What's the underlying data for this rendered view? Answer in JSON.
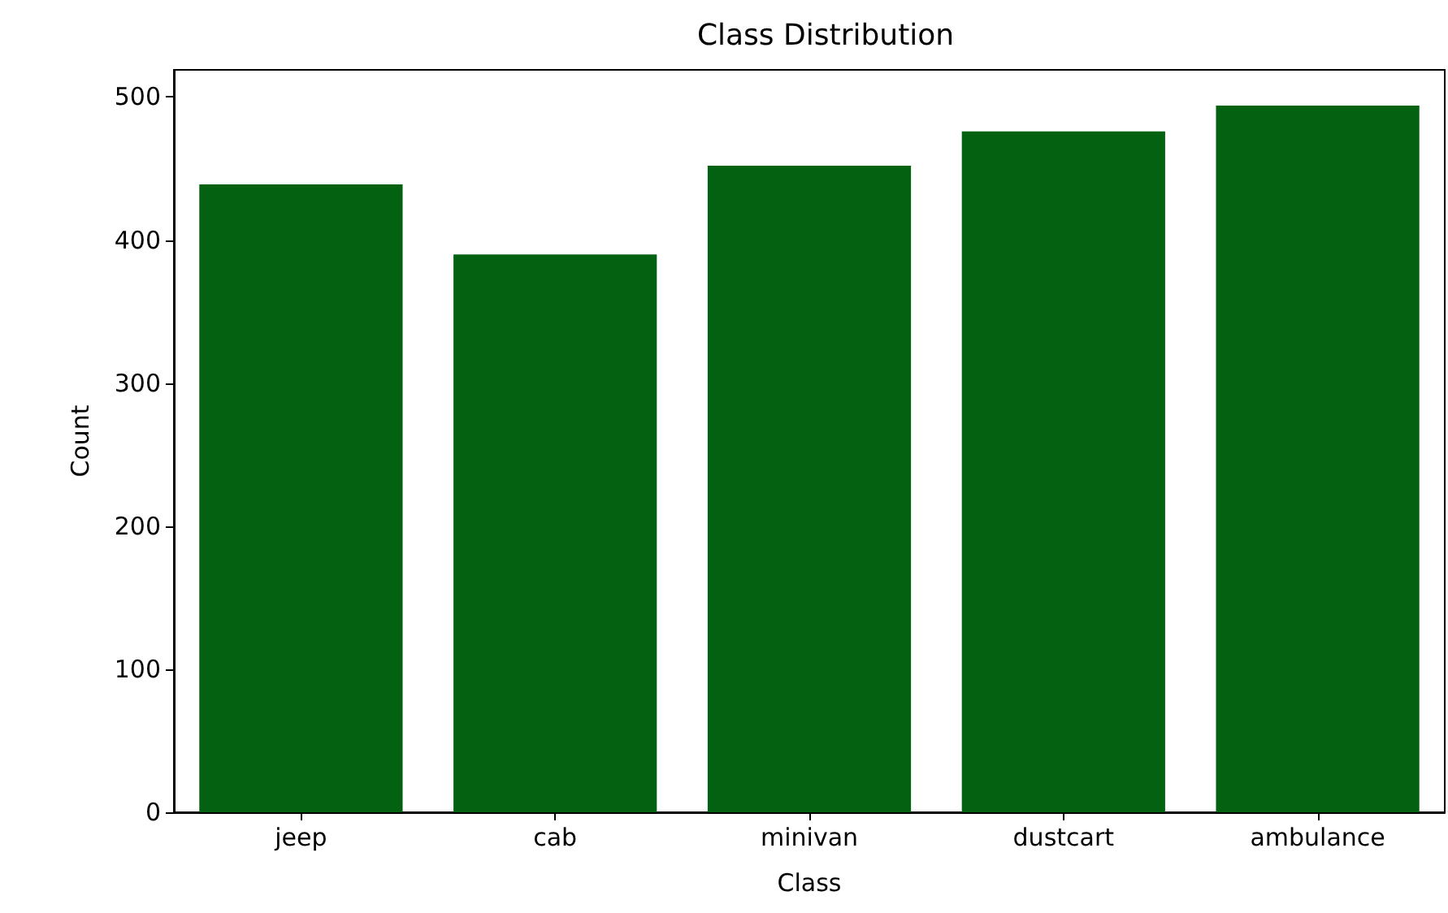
{
  "chart_data": {
    "type": "bar",
    "title": "Class Distribution",
    "xlabel": "Class",
    "ylabel": "Count",
    "categories": [
      "jeep",
      "cab",
      "minivan",
      "dustcart",
      "ambulance"
    ],
    "values": [
      439,
      390,
      452,
      476,
      494
    ],
    "color": "#036211",
    "ylim": [
      0,
      519
    ],
    "yticks": [
      0,
      100,
      200,
      300,
      400,
      500
    ],
    "grid": false
  }
}
